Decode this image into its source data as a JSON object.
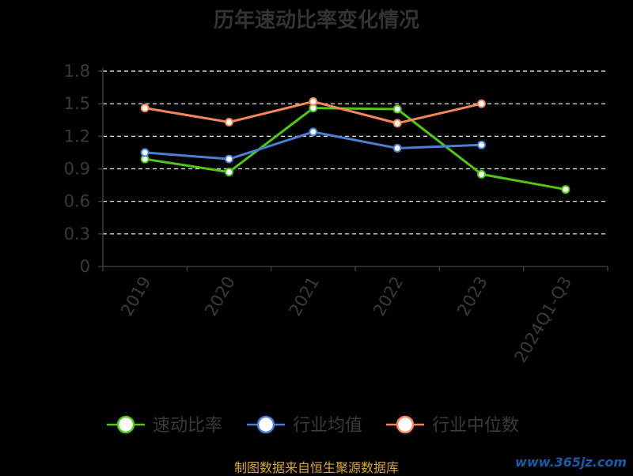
{
  "chart_data": {
    "type": "line",
    "title": "历年速动比率变化情况",
    "categories": [
      "2019",
      "2020",
      "2021",
      "2022",
      "2023",
      "2024Q1-Q3"
    ],
    "ylim": [
      0,
      1.8
    ],
    "yticks": [
      "0",
      "0.3",
      "0.6",
      "0.9",
      "1.2",
      "1.5",
      "1.8"
    ],
    "grid": true,
    "legend_position": "bottom",
    "series": [
      {
        "name": "速动比率",
        "color": "#52c41a",
        "values": [
          0.99,
          0.87,
          1.46,
          1.45,
          0.85,
          0.71
        ]
      },
      {
        "name": "行业均值",
        "color": "#4a7fd4",
        "values": [
          1.05,
          0.99,
          1.24,
          1.09,
          1.12,
          null
        ]
      },
      {
        "name": "行业中位数",
        "color": "#f5855b",
        "values": [
          1.46,
          1.33,
          1.52,
          1.32,
          1.5,
          null
        ]
      }
    ]
  },
  "footer": {
    "source": "制图数据来自恒生聚源数据库",
    "watermark": "www.365jz.com"
  }
}
